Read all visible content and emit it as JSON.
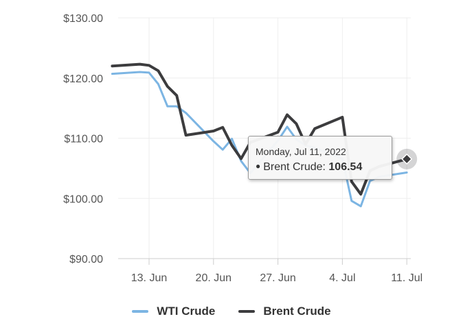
{
  "chart_data": {
    "type": "line",
    "title": "",
    "xlabel": "",
    "ylabel": "",
    "ylim": [
      90,
      130
    ],
    "xlim_days": [
      11,
      43
    ],
    "x_ticks": [
      {
        "day": 13,
        "label": "13. Jun"
      },
      {
        "day": 20,
        "label": "20. Jun"
      },
      {
        "day": 27,
        "label": "27. Jun"
      },
      {
        "day": 34,
        "label": "4. Jul"
      },
      {
        "day": 41,
        "label": "11. Jul"
      }
    ],
    "y_ticks": [
      "$90.00",
      "$100.00",
      "$110.00",
      "$120.00",
      "$130.00"
    ],
    "y_tick_values": [
      90,
      100,
      110,
      120,
      130
    ],
    "grid": true,
    "legend_position": "bottom",
    "series": [
      {
        "name": "WTI Crude",
        "color": "#7cb5e3",
        "points": [
          [
            "2022-06-09",
            120.7
          ],
          [
            "2022-06-12",
            121.0
          ],
          [
            "2022-06-13",
            120.9
          ],
          [
            "2022-06-14",
            119.0
          ],
          [
            "2022-06-15",
            115.3
          ],
          [
            "2022-06-16",
            115.3
          ],
          [
            "2022-06-17",
            114.2
          ],
          [
            "2022-06-20",
            109.5
          ],
          [
            "2022-06-21",
            108.1
          ],
          [
            "2022-06-22",
            109.9
          ],
          [
            "2022-06-23",
            106.2
          ],
          [
            "2022-06-24",
            104.2
          ],
          [
            "2022-06-27",
            109.6
          ],
          [
            "2022-06-28",
            111.9
          ],
          [
            "2022-06-29",
            109.8
          ],
          [
            "2022-06-30",
            108.8
          ],
          [
            "2022-07-01",
            108.4
          ],
          [
            "2022-07-04",
            106.6
          ],
          [
            "2022-07-05",
            99.6
          ],
          [
            "2022-07-06",
            98.7
          ],
          [
            "2022-07-07",
            102.9
          ],
          [
            "2022-07-08",
            103.6
          ],
          [
            "2022-07-11",
            104.3
          ]
        ]
      },
      {
        "name": "Brent Crude",
        "color": "#3c3c3e",
        "points": [
          [
            "2022-06-09",
            122.0
          ],
          [
            "2022-06-12",
            122.3
          ],
          [
            "2022-06-13",
            122.1
          ],
          [
            "2022-06-14",
            121.2
          ],
          [
            "2022-06-15",
            118.6
          ],
          [
            "2022-06-16",
            117.1
          ],
          [
            "2022-06-17",
            110.5
          ],
          [
            "2022-06-20",
            111.2
          ],
          [
            "2022-06-21",
            111.8
          ],
          [
            "2022-06-22",
            108.8
          ],
          [
            "2022-06-23",
            106.6
          ],
          [
            "2022-06-24",
            109.3
          ],
          [
            "2022-06-27",
            111.0
          ],
          [
            "2022-06-28",
            113.9
          ],
          [
            "2022-06-29",
            112.4
          ],
          [
            "2022-06-30",
            109.0
          ],
          [
            "2022-07-01",
            111.6
          ],
          [
            "2022-07-04",
            113.5
          ],
          [
            "2022-07-05",
            102.8
          ],
          [
            "2022-07-06",
            100.7
          ],
          [
            "2022-07-07",
            104.6
          ],
          [
            "2022-07-08",
            105.3
          ],
          [
            "2022-07-11",
            106.54
          ]
        ]
      }
    ],
    "tooltip": {
      "date": "Monday, Jul 11, 2022",
      "series": "Brent Crude",
      "value": "106.54",
      "marker_day": 41,
      "marker_value": 106.54
    }
  }
}
